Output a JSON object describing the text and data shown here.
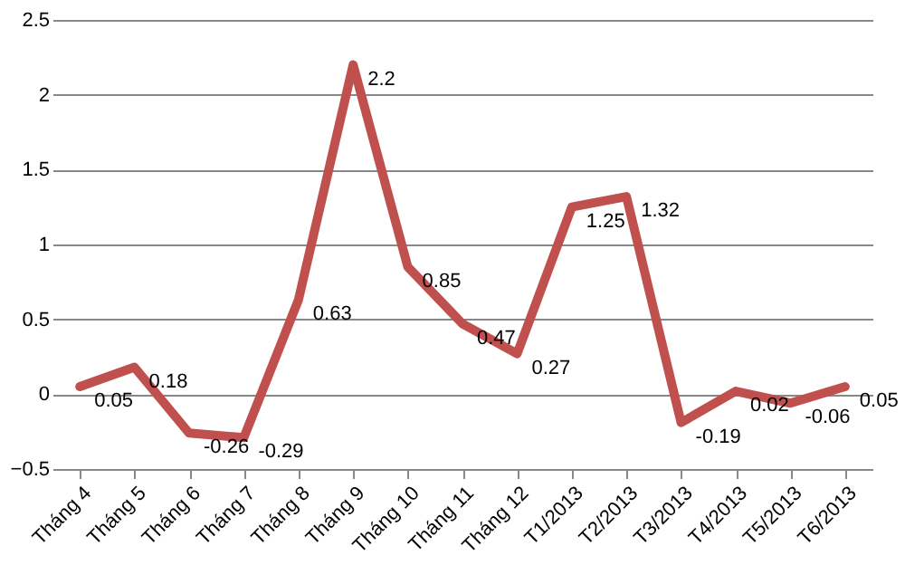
{
  "chart_data": {
    "type": "line",
    "categories": [
      "Tháng 4",
      "Tháng 5",
      "Tháng 6",
      "Tháng 7",
      "Tháng 8",
      "Tháng 9",
      "Tháng 10",
      "Tháng 11",
      "Tháng 12",
      "T1/2013",
      "T2/2013",
      "T3/2013",
      "T4/2013",
      "T5/2013",
      "T6/2013"
    ],
    "series": [
      {
        "color": "#c0504d",
        "values": [
          0.05,
          0.18,
          -0.26,
          -0.29,
          0.63,
          2.2,
          0.85,
          0.47,
          0.27,
          1.25,
          1.32,
          -0.19,
          0.02,
          -0.06,
          0.05
        ]
      }
    ],
    "ylim": [
      -0.5,
      2.5
    ],
    "yticks": [
      -0.5,
      0,
      0.5,
      1,
      1.5,
      2,
      2.5
    ],
    "grid": "y",
    "data_labels": true,
    "marker": "none",
    "line_style": "solid",
    "legend": false
  }
}
